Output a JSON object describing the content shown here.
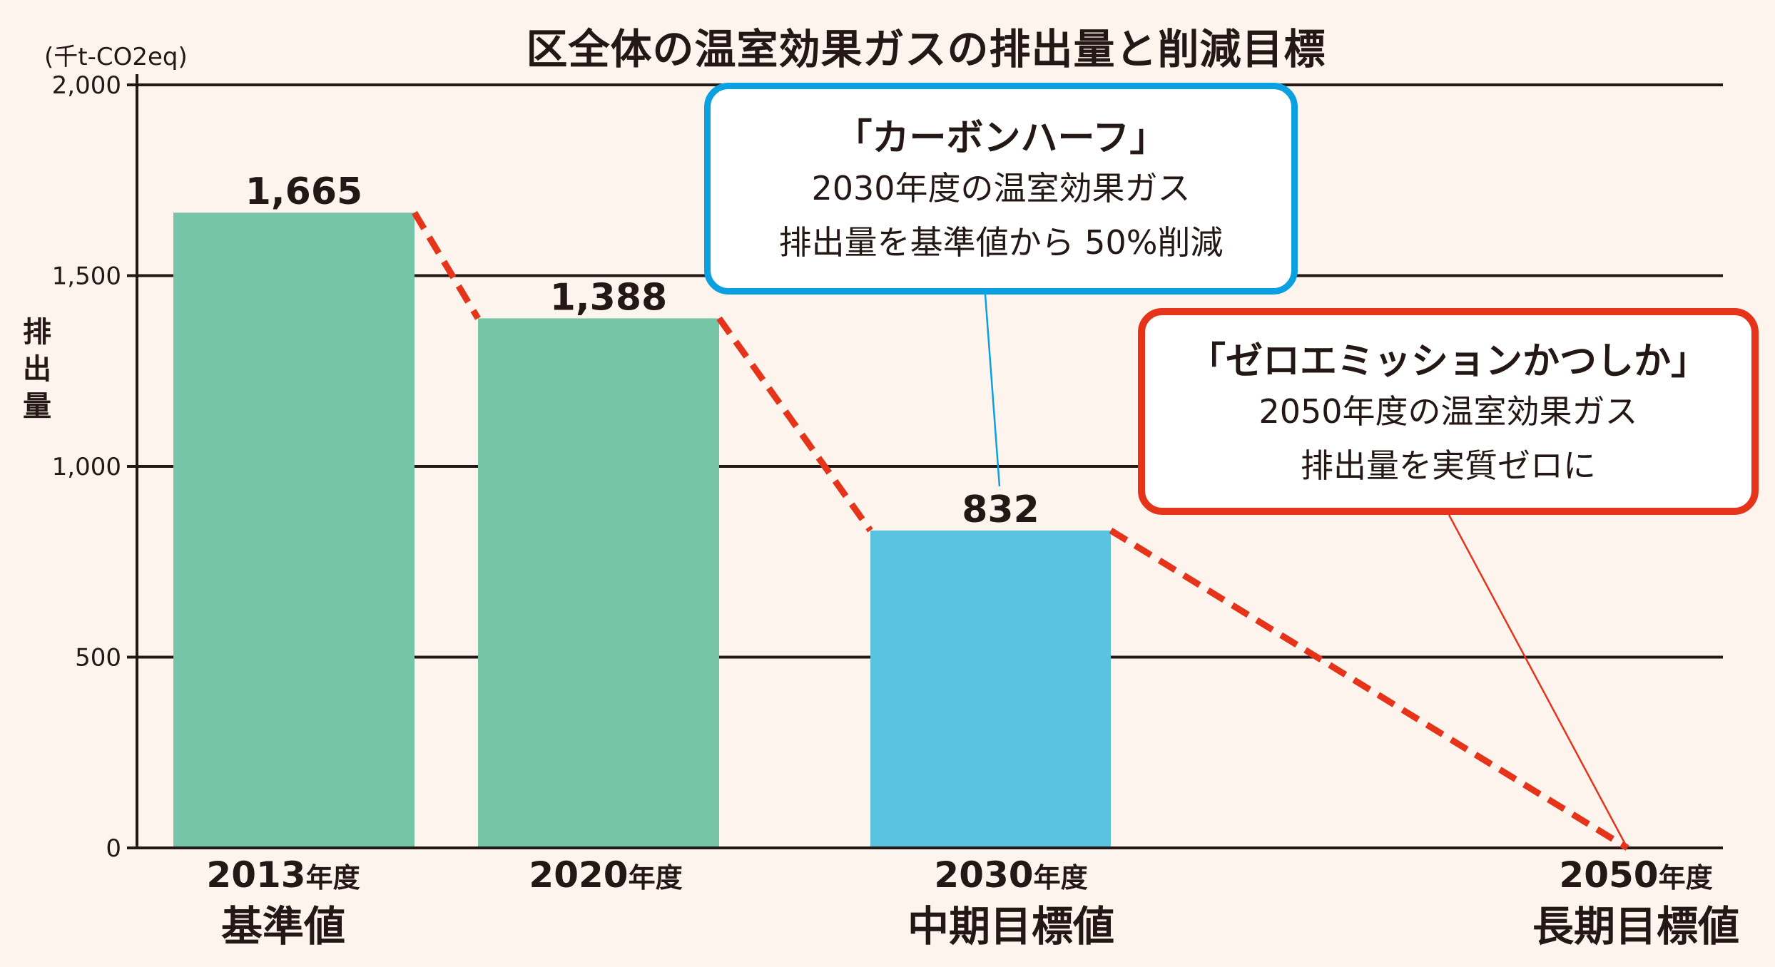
{
  "chart_data": {
    "type": "bar",
    "title": "区全体の温室効果ガスの排出量と削減目標",
    "unit": "(千t-CO2eq)",
    "ylabel": "排出量",
    "ylim": [
      0,
      2000
    ],
    "yticks": [
      "0",
      "500",
      "1,000",
      "1,500",
      "2,000"
    ],
    "ytick_values": [
      0,
      500,
      1000,
      1500,
      2000
    ],
    "grid": true,
    "categories": [
      {
        "year": "2013",
        "suffix": "年度",
        "sub": "基準値"
      },
      {
        "year": "2020",
        "suffix": "年度",
        "sub": ""
      },
      {
        "year": "2030",
        "suffix": "年度",
        "sub": "中期目標値"
      },
      {
        "year": "2050",
        "suffix": "年度",
        "sub": "長期目標値"
      }
    ],
    "values": [
      1665,
      1388,
      832,
      0
    ],
    "data_labels": [
      "1,665",
      "1,388",
      "832",
      ""
    ],
    "bar_colors": [
      "#76c5a9",
      "#76c5a9",
      "#5ac3e0",
      null
    ],
    "trend_line": {
      "style": "dashed",
      "color": "#e5341a"
    }
  },
  "callouts": {
    "carbon_half": {
      "title": "「カーボンハーフ」",
      "lines": [
        "2030年度の温室効果ガス",
        "排出量を基準値から 50%削減"
      ],
      "color": "#0aa0e2"
    },
    "zero_emission": {
      "title": "「ゼロエミッションかつしか」",
      "lines": [
        "2050年度の温室効果ガス",
        "排出量を実質ゼロに"
      ],
      "color": "#e5341a"
    }
  }
}
